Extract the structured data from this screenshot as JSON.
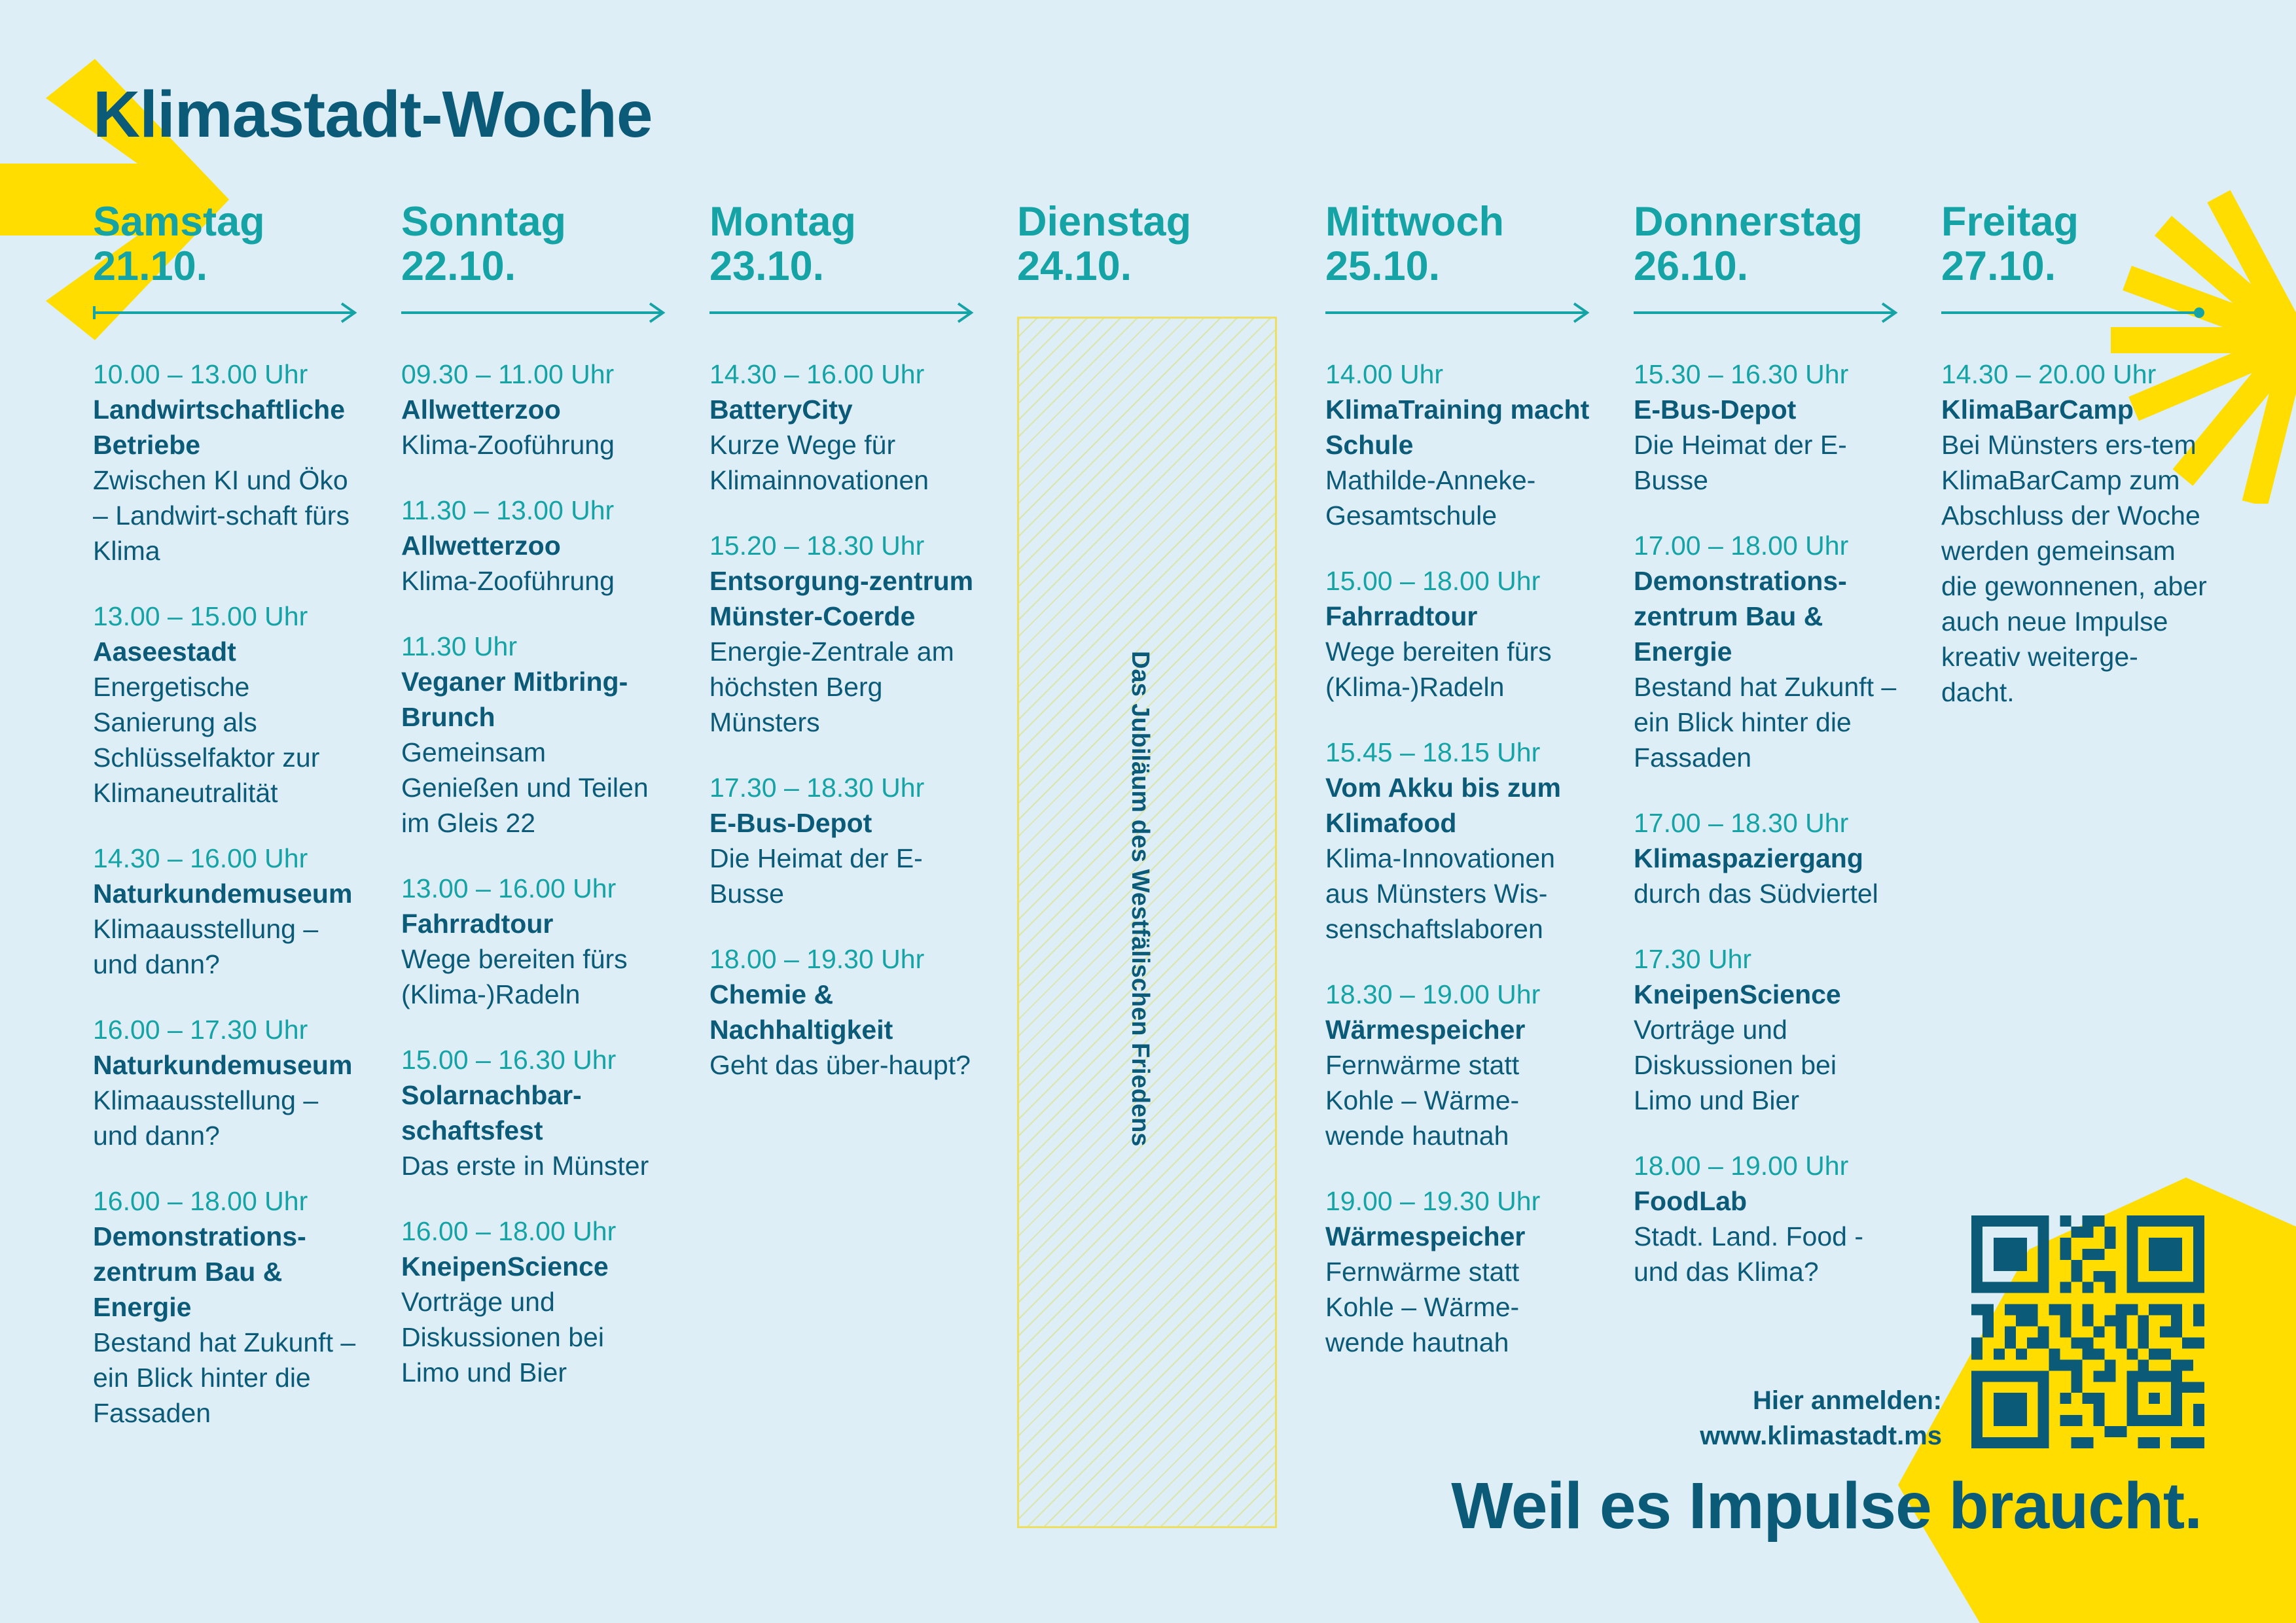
{
  "title": "Klimastadt-Woche",
  "colors": {
    "background": "#ddeef7",
    "navy": "#0b5a78",
    "teal": "#15a3a6",
    "yellow": "#ffdd00"
  },
  "days": [
    {
      "weekday": "Samstag",
      "date": "21.10.",
      "events": [
        {
          "time": "10.00 – 13.00 Uhr",
          "title": "Landwirtschaftliche Betriebe",
          "desc": "Zwischen KI und Öko – Landwirt-schaft fürs Klima"
        },
        {
          "time": "13.00 – 15.00 Uhr",
          "title": "Aaseestadt",
          "desc": "Energetische Sanierung als Schlüsselfaktor zur Klimaneutralität"
        },
        {
          "time": "14.30 – 16.00 Uhr",
          "title": "Naturkundemuseum",
          "desc": "Klimaausstellung – und dann?"
        },
        {
          "time": "16.00 – 17.30 Uhr",
          "title": "Naturkundemuseum",
          "desc": "Klimaausstellung – und dann?"
        },
        {
          "time": "16.00 – 18.00 Uhr",
          "title": "Demonstrations-zentrum Bau & Energie",
          "desc": "Bestand hat Zukunft – ein Blick hinter die Fassaden"
        }
      ]
    },
    {
      "weekday": "Sonntag",
      "date": "22.10.",
      "events": [
        {
          "time": "09.30 – 11.00 Uhr",
          "title": "Allwetterzoo",
          "desc": "Klima-Zooführung"
        },
        {
          "time": "11.30 – 13.00 Uhr",
          "title": "Allwetterzoo",
          "desc": "Klima-Zooführung"
        },
        {
          "time": "11.30 Uhr",
          "title": "Veganer Mitbring-Brunch",
          "desc": "Gemeinsam Genießen und Teilen im Gleis 22"
        },
        {
          "time": "13.00 – 16.00 Uhr",
          "title": "Fahrradtour",
          "desc": "Wege bereiten fürs (Klima-)Radeln"
        },
        {
          "time": "15.00 – 16.30 Uhr",
          "title": "Solarnachbar-schaftsfest",
          "desc": "Das erste in Münster"
        },
        {
          "time": "16.00 – 18.00 Uhr",
          "title": "KneipenScience",
          "desc": "Vorträge und Diskussionen bei Limo und Bier"
        }
      ]
    },
    {
      "weekday": "Montag",
      "date": "23.10.",
      "events": [
        {
          "time": "14.30 – 16.00 Uhr",
          "title": "BatteryCity",
          "desc": "Kurze Wege für Klimainnovationen"
        },
        {
          "time": "15.20 – 18.30 Uhr",
          "title": "Entsorgung-zentrum Münster-Coerde",
          "desc": "Energie-Zentrale am höchsten Berg Münsters"
        },
        {
          "time": "17.30 – 18.30 Uhr",
          "title": "E-Bus-Depot",
          "desc": "Die Heimat der E-Busse"
        },
        {
          "time": "18.00 – 19.30 Uhr",
          "title": "Chemie & Nachhaltigkeit",
          "desc": "Geht das über-haupt?"
        }
      ]
    },
    {
      "weekday": "Dienstag",
      "date": "24.10.",
      "note": "Das Jubiläum des Westfälischen Friedens",
      "events": []
    },
    {
      "weekday": "Mittwoch",
      "date": "25.10.",
      "events": [
        {
          "time": "14.00 Uhr",
          "title": "KlimaTraining macht Schule",
          "desc": "Mathilde-Anneke-Gesamtschule"
        },
        {
          "time": "15.00 – 18.00 Uhr",
          "title": "Fahrradtour",
          "desc": "Wege bereiten fürs (Klima-)Radeln"
        },
        {
          "time": "15.45 – 18.15 Uhr",
          "title": "Vom Akku bis zum Klimafood",
          "desc": "Klima-Innovationen aus Münsters Wis-senschaftslaboren"
        },
        {
          "time": "18.30 – 19.00 Uhr",
          "title": "Wärmespeicher",
          "desc": "Fernwärme statt Kohle – Wärme-wende hautnah"
        },
        {
          "time": "19.00 – 19.30 Uhr",
          "title": "Wärmespeicher",
          "desc": "Fernwärme statt Kohle – Wärme-wende hautnah"
        }
      ]
    },
    {
      "weekday": "Donnerstag",
      "date": "26.10.",
      "events": [
        {
          "time": "15.30 – 16.30 Uhr",
          "title": "E-Bus-Depot",
          "desc": "Die Heimat der E-Busse"
        },
        {
          "time": "17.00 – 18.00 Uhr",
          "title": "Demonstrations-zentrum Bau & Energie",
          "desc": "Bestand hat Zukunft – ein Blick hinter die Fassaden"
        },
        {
          "time": "17.00 – 18.30 Uhr",
          "title": "Klimaspaziergang",
          "desc": "durch das Südviertel"
        },
        {
          "time": "17.30 Uhr",
          "title": "KneipenScience",
          "desc": "Vorträge und Diskussionen bei Limo und Bier"
        },
        {
          "time": "18.00 – 19.00 Uhr",
          "title": "FoodLab",
          "desc": "Stadt. Land. Food - und das Klima?"
        }
      ]
    },
    {
      "weekday": "Freitag",
      "date": "27.10.",
      "events": [
        {
          "time": "14.30 – 20.00 Uhr",
          "title": "KlimaBarCamp",
          "desc": "Bei Münsters ers-tem KlimaBarCamp zum Abschluss der Woche werden gemeinsam die gewonnenen, aber auch neue Impulse kreativ weiterge-dacht."
        }
      ]
    }
  ],
  "signup": {
    "label": "Hier anmelden:",
    "url": "www.klimastadt.ms"
  },
  "tagline": "Weil es Impulse braucht."
}
